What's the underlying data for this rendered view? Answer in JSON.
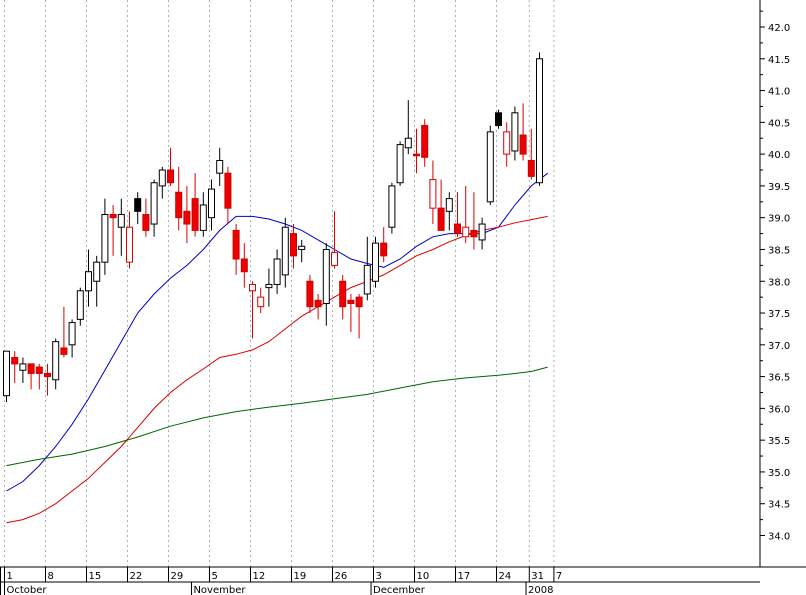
{
  "chart_data": {
    "type": "candlestick",
    "title": "",
    "xlabel": "",
    "ylabel": "",
    "ylim": [
      33.6,
      42.5
    ],
    "y_ticks": [
      "34.0",
      "34.5",
      "35.0",
      "35.5",
      "36.0",
      "36.5",
      "37.0",
      "37.5",
      "38.0",
      "38.5",
      "39.0",
      "39.5",
      "40.0",
      "40.5",
      "41.0",
      "41.5",
      "42.0"
    ],
    "x_day_labels": [
      {
        "label": "1",
        "idx": 0
      },
      {
        "label": "8",
        "idx": 5
      },
      {
        "label": "15",
        "idx": 10
      },
      {
        "label": "22",
        "idx": 15
      },
      {
        "label": "29",
        "idx": 20
      },
      {
        "label": "5",
        "idx": 25
      },
      {
        "label": "12",
        "idx": 30
      },
      {
        "label": "19",
        "idx": 35
      },
      {
        "label": "26",
        "idx": 40
      },
      {
        "label": "3",
        "idx": 45
      },
      {
        "label": "10",
        "idx": 50
      },
      {
        "label": "17",
        "idx": 55
      },
      {
        "label": "24",
        "idx": 60
      },
      {
        "label": "31",
        "idx": 64
      },
      {
        "label": "7",
        "idx": 67
      }
    ],
    "x_month_labels": [
      {
        "label": "October",
        "idx": 0
      },
      {
        "label": "November",
        "idx": 22.8
      },
      {
        "label": "December",
        "idx": 44.7
      },
      {
        "label": "2008",
        "idx": 63.6
      }
    ],
    "grid": true,
    "candles": [
      {
        "o": 36.2,
        "h": 36.9,
        "l": 36.1,
        "c": 36.9,
        "color": "white"
      },
      {
        "o": 36.8,
        "h": 36.9,
        "l": 36.4,
        "c": 36.7,
        "color": "red"
      },
      {
        "o": 36.6,
        "h": 36.8,
        "l": 36.4,
        "c": 36.7,
        "color": "white"
      },
      {
        "o": 36.7,
        "h": 36.7,
        "l": 36.3,
        "c": 36.55,
        "color": "red"
      },
      {
        "o": 36.65,
        "h": 36.7,
        "l": 36.3,
        "c": 36.55,
        "color": "red"
      },
      {
        "o": 36.55,
        "h": 36.7,
        "l": 36.2,
        "c": 36.5,
        "color": "red"
      },
      {
        "o": 36.45,
        "h": 37.1,
        "l": 36.3,
        "c": 37.05,
        "color": "white"
      },
      {
        "o": 36.95,
        "h": 37.6,
        "l": 36.8,
        "c": 36.85,
        "color": "red"
      },
      {
        "o": 37.0,
        "h": 37.4,
        "l": 36.8,
        "c": 37.35,
        "color": "white"
      },
      {
        "o": 37.4,
        "h": 37.9,
        "l": 37.3,
        "c": 37.85,
        "color": "white"
      },
      {
        "o": 37.85,
        "h": 38.5,
        "l": 37.6,
        "c": 38.15,
        "color": "white"
      },
      {
        "o": 38.0,
        "h": 38.4,
        "l": 37.6,
        "c": 38.3,
        "color": "white"
      },
      {
        "o": 38.3,
        "h": 39.3,
        "l": 38.1,
        "c": 39.05,
        "color": "white"
      },
      {
        "o": 39.05,
        "h": 39.2,
        "l": 38.4,
        "c": 39.0,
        "color": "red"
      },
      {
        "o": 38.85,
        "h": 39.3,
        "l": 38.4,
        "c": 39.05,
        "color": "white"
      },
      {
        "o": 38.85,
        "h": 39.1,
        "l": 38.2,
        "c": 38.3,
        "color": "red-hollow"
      },
      {
        "o": 39.3,
        "h": 39.4,
        "l": 38.9,
        "c": 39.1,
        "color": "black"
      },
      {
        "o": 39.05,
        "h": 39.3,
        "l": 38.7,
        "c": 38.8,
        "color": "red"
      },
      {
        "o": 38.9,
        "h": 39.6,
        "l": 38.7,
        "c": 39.55,
        "color": "white"
      },
      {
        "o": 39.5,
        "h": 39.8,
        "l": 39.3,
        "c": 39.75,
        "color": "white"
      },
      {
        "o": 39.75,
        "h": 40.1,
        "l": 39.5,
        "c": 39.55,
        "color": "red"
      },
      {
        "o": 39.4,
        "h": 39.8,
        "l": 38.8,
        "c": 39.0,
        "color": "red"
      },
      {
        "o": 39.1,
        "h": 39.5,
        "l": 38.6,
        "c": 38.9,
        "color": "red"
      },
      {
        "o": 39.3,
        "h": 39.7,
        "l": 38.7,
        "c": 38.8,
        "color": "red"
      },
      {
        "o": 38.8,
        "h": 39.4,
        "l": 38.7,
        "c": 39.2,
        "color": "white"
      },
      {
        "o": 39.0,
        "h": 39.6,
        "l": 38.8,
        "c": 39.45,
        "color": "white"
      },
      {
        "o": 39.7,
        "h": 40.1,
        "l": 39.5,
        "c": 39.9,
        "color": "white"
      },
      {
        "o": 39.7,
        "h": 39.8,
        "l": 38.9,
        "c": 39.15,
        "color": "red"
      },
      {
        "o": 38.8,
        "h": 38.9,
        "l": 38.1,
        "c": 38.35,
        "color": "red"
      },
      {
        "o": 38.35,
        "h": 38.6,
        "l": 37.9,
        "c": 38.15,
        "color": "red"
      },
      {
        "o": 37.95,
        "h": 38.0,
        "l": 37.1,
        "c": 37.85,
        "color": "red-hollow"
      },
      {
        "o": 37.6,
        "h": 37.9,
        "l": 37.5,
        "c": 37.75,
        "color": "red-hollow"
      },
      {
        "o": 37.9,
        "h": 38.2,
        "l": 37.6,
        "c": 37.95,
        "color": "white"
      },
      {
        "o": 37.95,
        "h": 38.5,
        "l": 37.8,
        "c": 38.35,
        "color": "white"
      },
      {
        "o": 38.1,
        "h": 39.0,
        "l": 37.9,
        "c": 38.85,
        "color": "white"
      },
      {
        "o": 38.75,
        "h": 38.9,
        "l": 38.2,
        "c": 38.4,
        "color": "red"
      },
      {
        "o": 38.5,
        "h": 38.65,
        "l": 38.3,
        "c": 38.55,
        "color": "white"
      },
      {
        "o": 38.0,
        "h": 38.1,
        "l": 37.5,
        "c": 37.6,
        "color": "red"
      },
      {
        "o": 37.7,
        "h": 37.8,
        "l": 37.4,
        "c": 37.6,
        "color": "red"
      },
      {
        "o": 37.65,
        "h": 38.6,
        "l": 37.3,
        "c": 38.5,
        "color": "white"
      },
      {
        "o": 38.45,
        "h": 39.1,
        "l": 38.2,
        "c": 38.25,
        "color": "red-hollow"
      },
      {
        "o": 38.0,
        "h": 38.1,
        "l": 37.4,
        "c": 37.6,
        "color": "red"
      },
      {
        "o": 37.7,
        "h": 37.8,
        "l": 37.2,
        "c": 37.65,
        "color": "red"
      },
      {
        "o": 37.75,
        "h": 37.8,
        "l": 37.1,
        "c": 37.6,
        "color": "red"
      },
      {
        "o": 37.8,
        "h": 38.7,
        "l": 37.7,
        "c": 38.25,
        "color": "white"
      },
      {
        "o": 38.0,
        "h": 38.7,
        "l": 37.9,
        "c": 38.6,
        "color": "white"
      },
      {
        "o": 38.6,
        "h": 38.85,
        "l": 38.3,
        "c": 38.4,
        "color": "red"
      },
      {
        "o": 38.85,
        "h": 39.55,
        "l": 38.75,
        "c": 39.5,
        "color": "white"
      },
      {
        "o": 39.55,
        "h": 40.2,
        "l": 39.5,
        "c": 40.15,
        "color": "white"
      },
      {
        "o": 40.1,
        "h": 40.85,
        "l": 40.0,
        "c": 40.25,
        "color": "white"
      },
      {
        "o": 40.0,
        "h": 40.4,
        "l": 39.7,
        "c": 40.0,
        "color": "red"
      },
      {
        "o": 40.45,
        "h": 40.55,
        "l": 39.8,
        "c": 39.95,
        "color": "red"
      },
      {
        "o": 39.6,
        "h": 39.9,
        "l": 38.9,
        "c": 39.15,
        "color": "red-hollow"
      },
      {
        "o": 39.15,
        "h": 39.6,
        "l": 38.8,
        "c": 38.8,
        "color": "red"
      },
      {
        "o": 39.1,
        "h": 39.4,
        "l": 38.8,
        "c": 39.3,
        "color": "white"
      },
      {
        "o": 38.9,
        "h": 39.4,
        "l": 38.7,
        "c": 38.75,
        "color": "red"
      },
      {
        "o": 38.85,
        "h": 39.5,
        "l": 38.6,
        "c": 38.7,
        "color": "red-hollow"
      },
      {
        "o": 38.8,
        "h": 39.4,
        "l": 38.5,
        "c": 38.7,
        "color": "red"
      },
      {
        "o": 38.65,
        "h": 39.0,
        "l": 38.5,
        "c": 38.9,
        "color": "white"
      },
      {
        "o": 39.25,
        "h": 40.45,
        "l": 39.2,
        "c": 40.35,
        "color": "white"
      },
      {
        "o": 40.65,
        "h": 40.7,
        "l": 40.4,
        "c": 40.45,
        "color": "black"
      },
      {
        "o": 40.35,
        "h": 40.5,
        "l": 39.8,
        "c": 40.0,
        "color": "red-hollow"
      },
      {
        "o": 40.05,
        "h": 40.75,
        "l": 39.9,
        "c": 40.65,
        "color": "white"
      },
      {
        "o": 40.3,
        "h": 40.8,
        "l": 39.9,
        "c": 40.0,
        "color": "red"
      },
      {
        "o": 39.9,
        "h": 40.4,
        "l": 39.6,
        "c": 39.65,
        "color": "red"
      },
      {
        "o": 39.55,
        "h": 41.6,
        "l": 39.5,
        "c": 41.5,
        "color": "white"
      }
    ],
    "series": [
      {
        "type": "line",
        "color": "#0000cc",
        "points": [
          [
            0,
            34.7
          ],
          [
            2,
            34.85
          ],
          [
            4,
            35.1
          ],
          [
            6,
            35.4
          ],
          [
            8,
            35.75
          ],
          [
            10,
            36.15
          ],
          [
            12,
            36.6
          ],
          [
            14,
            37.05
          ],
          [
            16,
            37.5
          ],
          [
            18,
            37.8
          ],
          [
            20,
            38.05
          ],
          [
            22,
            38.25
          ],
          [
            24,
            38.5
          ],
          [
            26,
            38.8
          ],
          [
            28,
            39.02
          ],
          [
            30,
            39.02
          ],
          [
            32,
            38.98
          ],
          [
            34,
            38.9
          ],
          [
            36,
            38.8
          ],
          [
            38,
            38.65
          ],
          [
            40,
            38.5
          ],
          [
            42,
            38.35
          ],
          [
            44,
            38.28
          ],
          [
            46,
            38.22
          ],
          [
            48,
            38.35
          ],
          [
            50,
            38.55
          ],
          [
            52,
            38.7
          ],
          [
            54,
            38.75
          ],
          [
            56,
            38.75
          ],
          [
            58,
            38.75
          ],
          [
            60,
            38.85
          ],
          [
            62,
            39.2
          ],
          [
            64,
            39.5
          ],
          [
            66,
            39.7
          ]
        ]
      },
      {
        "type": "line",
        "color": "#dd0000",
        "points": [
          [
            0,
            34.2
          ],
          [
            2,
            34.25
          ],
          [
            4,
            34.35
          ],
          [
            6,
            34.5
          ],
          [
            8,
            34.7
          ],
          [
            10,
            34.9
          ],
          [
            12,
            35.15
          ],
          [
            14,
            35.4
          ],
          [
            16,
            35.7
          ],
          [
            18,
            36.0
          ],
          [
            20,
            36.25
          ],
          [
            22,
            36.45
          ],
          [
            24,
            36.62
          ],
          [
            26,
            36.8
          ],
          [
            28,
            36.85
          ],
          [
            30,
            36.92
          ],
          [
            32,
            37.05
          ],
          [
            34,
            37.25
          ],
          [
            36,
            37.45
          ],
          [
            38,
            37.6
          ],
          [
            40,
            37.75
          ],
          [
            42,
            37.9
          ],
          [
            44,
            38.0
          ],
          [
            46,
            38.1
          ],
          [
            48,
            38.25
          ],
          [
            50,
            38.4
          ],
          [
            52,
            38.5
          ],
          [
            54,
            38.62
          ],
          [
            56,
            38.72
          ],
          [
            58,
            38.8
          ],
          [
            60,
            38.85
          ],
          [
            62,
            38.92
          ],
          [
            64,
            38.97
          ],
          [
            66,
            39.02
          ]
        ]
      },
      {
        "type": "line",
        "color": "#006600",
        "points": [
          [
            0,
            35.1
          ],
          [
            4,
            35.2
          ],
          [
            8,
            35.28
          ],
          [
            12,
            35.4
          ],
          [
            16,
            35.55
          ],
          [
            20,
            35.72
          ],
          [
            24,
            35.85
          ],
          [
            28,
            35.95
          ],
          [
            32,
            36.02
          ],
          [
            36,
            36.08
          ],
          [
            40,
            36.15
          ],
          [
            44,
            36.22
          ],
          [
            48,
            36.32
          ],
          [
            52,
            36.42
          ],
          [
            56,
            36.48
          ],
          [
            60,
            36.52
          ],
          [
            64,
            36.58
          ],
          [
            66,
            36.65
          ]
        ]
      }
    ]
  }
}
